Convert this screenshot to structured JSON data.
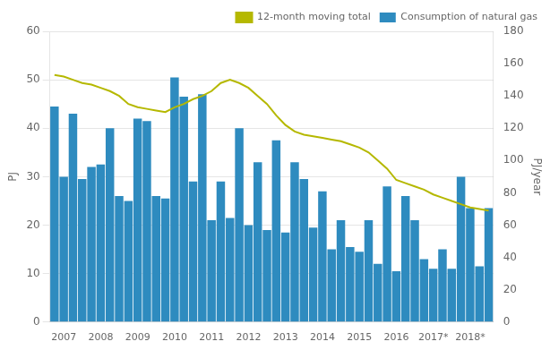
{
  "chart_data": {
    "type": "bar",
    "categories": [
      null,
      "2007",
      null,
      null,
      null,
      "2008",
      null,
      null,
      null,
      "2009",
      null,
      null,
      null,
      "2010",
      null,
      null,
      null,
      "2011",
      null,
      null,
      null,
      "2012",
      null,
      null,
      null,
      "2013",
      null,
      null,
      null,
      "2014",
      null,
      null,
      null,
      "2015",
      null,
      null,
      null,
      "2016",
      null,
      null,
      null,
      "2017*",
      null,
      null,
      null,
      "2018*",
      null,
      null
    ],
    "series": [
      {
        "name": "Consumption of natural gas",
        "type": "bar",
        "color": "#2e8bbf",
        "values": [
          44.5,
          30.0,
          43.0,
          29.5,
          32.0,
          32.5,
          40.0,
          26.0,
          25.0,
          42.0,
          41.5,
          26.0,
          25.5,
          50.5,
          46.5,
          29.0,
          47.0,
          21.0,
          29.0,
          21.5,
          40.0,
          20.0,
          33.0,
          19.0,
          37.5,
          18.5,
          33.0,
          29.5,
          19.5,
          27.0,
          15.0,
          21.0,
          15.5,
          14.5,
          21.0,
          12.0,
          28.0,
          10.5,
          26.0,
          21.0,
          13.0,
          11.0,
          15.0,
          11.0,
          30.0,
          23.5,
          11.5,
          23.5
        ]
      },
      {
        "name": "12-month moving total",
        "type": "line",
        "color": "#b5b800",
        "axis": "y2",
        "values": [
          153,
          152,
          150,
          148,
          147,
          145,
          143,
          140,
          135,
          133,
          132,
          131,
          130,
          133,
          135,
          138,
          140,
          143,
          148,
          150,
          148,
          145,
          140,
          135,
          128,
          122,
          118,
          116,
          115,
          114,
          113,
          112,
          110,
          108,
          105,
          100,
          95,
          88,
          86,
          84,
          82,
          79,
          77,
          75,
          73,
          71,
          70,
          69
        ]
      }
    ],
    "ylabel": "PJ",
    "y2label": "PJ/year",
    "ylim": [
      0,
      60
    ],
    "yticks": [
      0,
      10,
      20,
      30,
      40,
      50,
      60
    ],
    "y2lim": [
      0,
      180
    ],
    "y2ticks": [
      0,
      20,
      40,
      60,
      80,
      100,
      120,
      140,
      160,
      180
    ],
    "grid": true,
    "legend": "upper right"
  }
}
